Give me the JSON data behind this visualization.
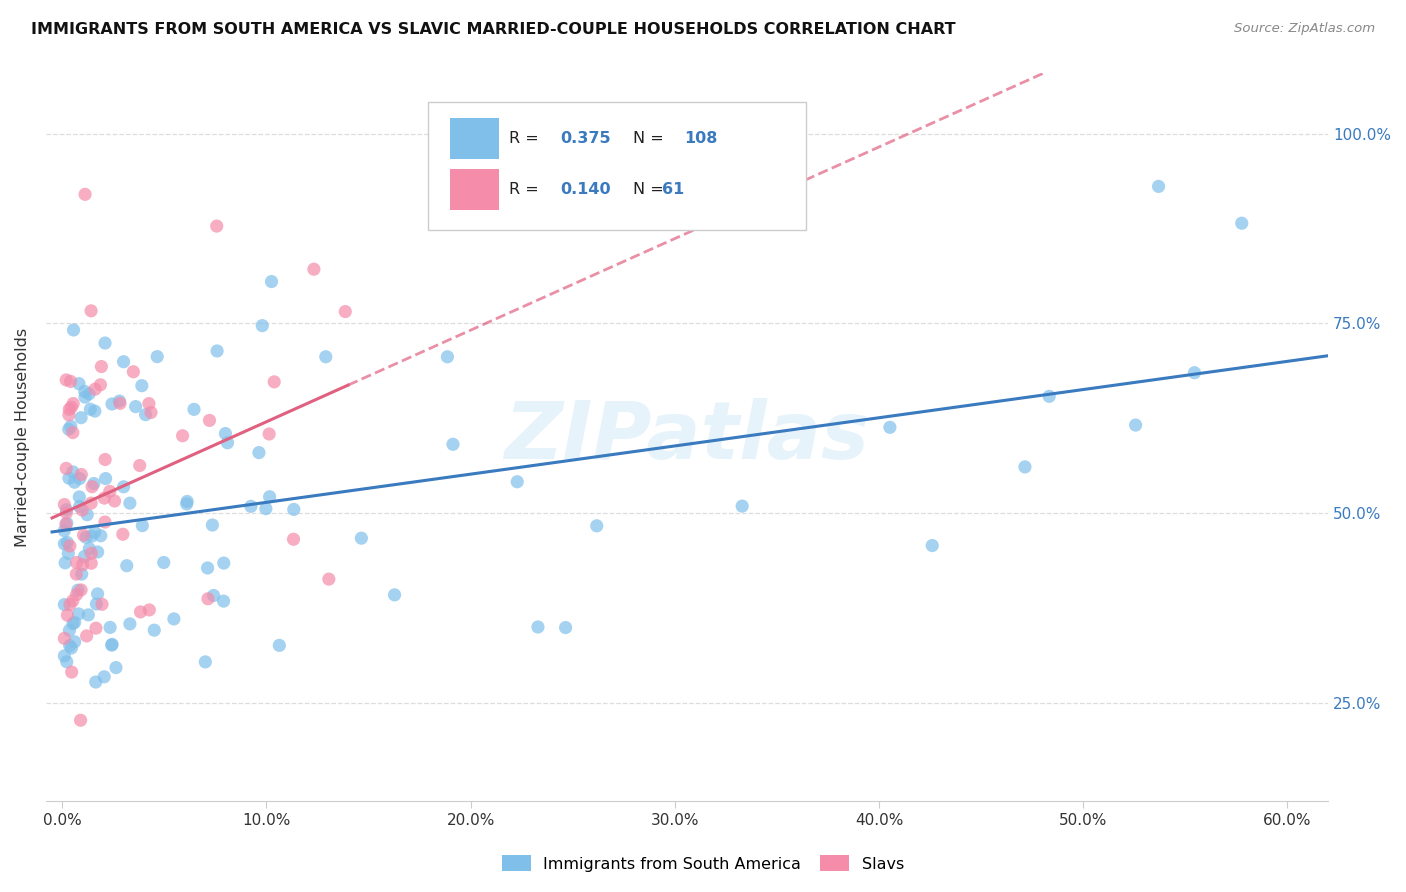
{
  "title": "IMMIGRANTS FROM SOUTH AMERICA VS SLAVIC MARRIED-COUPLE HOUSEHOLDS CORRELATION CHART",
  "source": "Source: ZipAtlas.com",
  "ylabel_label": "Married-couple Households",
  "legend_label1": "Immigrants from South America",
  "legend_label2": "Slavs",
  "R1": 0.375,
  "N1": 108,
  "R2": 0.14,
  "N2": 61,
  "color_blue": "#7fbfea",
  "color_pink": "#f48caa",
  "color_blue_line": "#3a7abf",
  "color_pink_line": "#e06080",
  "color_blue_text": "#3a7abf",
  "watermark": "ZIPatlas",
  "xlim": [
    0.0,
    0.62
  ],
  "ylim": [
    0.12,
    1.08
  ],
  "xtick_vals": [
    0.0,
    0.1,
    0.2,
    0.3,
    0.4,
    0.5,
    0.6
  ],
  "xtick_labels": [
    "0.0%",
    "10.0%",
    "20.0%",
    "30.0%",
    "40.0%",
    "50.0%",
    "60.0%"
  ],
  "ytick_vals": [
    0.25,
    0.5,
    0.75,
    1.0
  ],
  "ytick_labels": [
    "25.0%",
    "50.0%",
    "75.0%",
    "100.0%"
  ]
}
